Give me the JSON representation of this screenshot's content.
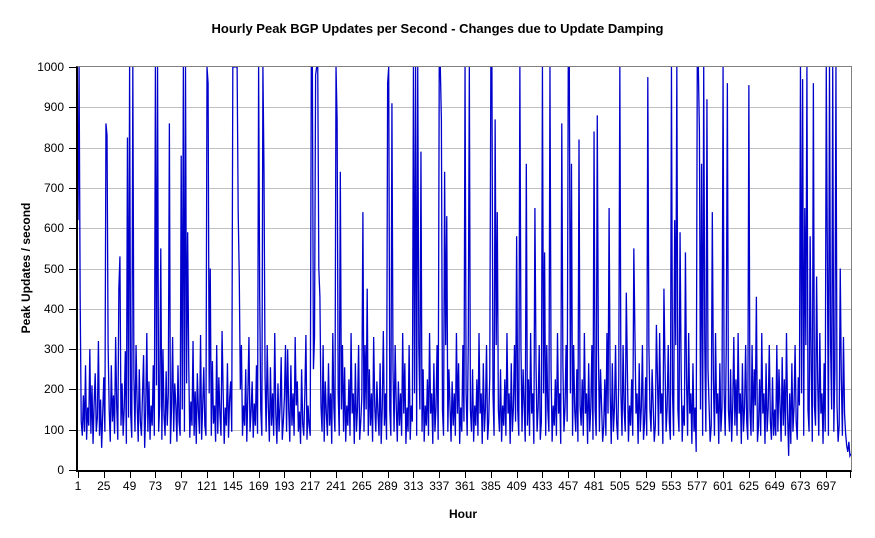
{
  "chart_data": {
    "type": "line",
    "title": "Hourly Peak BGP Updates per Second - Changes due to Update Damping",
    "xlabel": "Hour",
    "ylabel": "Peak Updates / second",
    "ylim": [
      0,
      1000
    ],
    "xlim": [
      1,
      720
    ],
    "y_ticks": [
      0,
      100,
      200,
      300,
      400,
      500,
      600,
      700,
      800,
      900,
      1000
    ],
    "x_tick_labels": [
      1,
      25,
      49,
      73,
      97,
      121,
      145,
      169,
      193,
      217,
      241,
      265,
      289,
      313,
      337,
      361,
      385,
      409,
      433,
      457,
      481,
      505,
      529,
      553,
      577,
      601,
      625,
      649,
      673,
      697
    ],
    "grid": "horizontal-only",
    "legend_position": "none",
    "clipped_at_top": true,
    "series": [
      {
        "name": "Hourly peak BGP updates per second",
        "x_start_hour": 1,
        "values": [
          620,
          1000,
          430,
          120,
          85,
          185,
          95,
          260,
          75,
          155,
          110,
          300,
          90,
          210,
          65,
          165,
          240,
          95,
          130,
          320,
          85,
          175,
          55,
          140,
          230,
          95,
          860,
          830,
          310,
          150,
          70,
          260,
          120,
          185,
          90,
          330,
          160,
          75,
          450,
          530,
          110,
          215,
          85,
          155,
          295,
          65,
          825,
          130,
          1000,
          140,
          80,
          1000,
          230,
          95,
          310,
          165,
          70,
          250,
          120,
          85,
          190,
          285,
          55,
          150,
          340,
          95,
          220,
          75,
          160,
          110,
          260,
          85,
          1000,
          210,
          1000,
          95,
          160,
          550,
          75,
          300,
          135,
          85,
          245,
          110,
          190,
          860,
          65,
          155,
          330,
          95,
          215,
          160,
          70,
          260,
          120,
          85,
          780,
          150,
          1000,
          95,
          1000,
          215,
          590,
          260,
          80,
          170,
          110,
          320,
          85,
          195,
          65,
          240,
          145,
          90,
          335,
          75,
          160,
          255,
          110,
          85,
          1000,
          960,
          190,
          500,
          85,
          270,
          115,
          160,
          70,
          310,
          90,
          230,
          140,
          85,
          345,
          195,
          65,
          155,
          110,
          265,
          80,
          175,
          220,
          95,
          1000,
          1000,
          1000,
          1000,
          1000,
          640,
          480,
          200,
          310,
          85,
          160,
          110,
          250,
          70,
          190,
          330,
          95,
          145,
          220,
          80,
          165,
          110,
          260,
          90,
          1000,
          430,
          150,
          85,
          1000,
          740,
          230,
          95,
          310,
          160,
          70,
          255,
          110,
          190,
          85,
          340,
          140,
          65,
          215,
          95,
          160,
          280,
          75,
          120,
          180,
          310,
          95,
          300,
          150,
          70,
          260,
          110,
          190,
          85,
          330,
          160,
          220,
          95,
          145,
          65,
          250,
          115,
          85,
          190,
          335,
          75,
          160,
          110,
          85,
          1000,
          1000,
          250,
          330,
          980,
          1000,
          1000,
          500,
          430,
          160,
          95,
          310,
          70,
          220,
          140,
          85,
          265,
          110,
          190,
          65,
          340,
          155,
          95,
          1000,
          870,
          190,
          85,
          740,
          150,
          310,
          95,
          255,
          70,
          160,
          110,
          225,
          85,
          340,
          140,
          190,
          65,
          265,
          95,
          155,
          310,
          75,
          120,
          180,
          640,
          95,
          310,
          150,
          450,
          85,
          250,
          110,
          190,
          70,
          330,
          160,
          95,
          220,
          140,
          85,
          265,
          65,
          155,
          345,
          110,
          190,
          75,
          960,
          1000,
          150,
          85,
          910,
          250,
          95,
          310,
          160,
          70,
          220,
          110,
          190,
          85,
          340,
          140,
          265,
          65,
          155,
          95,
          310,
          75,
          160,
          120,
          1000,
          190,
          1000,
          85,
          1000,
          310,
          150,
          790,
          95,
          250,
          70,
          160,
          110,
          225,
          85,
          340,
          140,
          190,
          65,
          265,
          95,
          155,
          310,
          75,
          1000,
          1000,
          870,
          150,
          85,
          740,
          310,
          630,
          95,
          250,
          160,
          70,
          220,
          110,
          190,
          85,
          340,
          140,
          265,
          65,
          155,
          95,
          310,
          120,
          1000,
          190,
          85,
          310,
          1000,
          150,
          95,
          250,
          70,
          160,
          110,
          225,
          85,
          340,
          140,
          190,
          65,
          265,
          95,
          155,
          310,
          75,
          120,
          230,
          1000,
          1000,
          190,
          85,
          870,
          310,
          640,
          150,
          95,
          250,
          70,
          160,
          110,
          225,
          85,
          340,
          140,
          190,
          65,
          265,
          95,
          155,
          310,
          120,
          580,
          150,
          85,
          1000,
          310,
          95,
          250,
          160,
          70,
          760,
          110,
          225,
          85,
          340,
          140,
          190,
          65,
          650,
          265,
          95,
          155,
          310,
          75,
          120,
          1000,
          190,
          540,
          85,
          310,
          150,
          95,
          1000,
          250,
          70,
          160,
          110,
          225,
          85,
          340,
          140,
          190,
          65,
          860,
          265,
          95,
          155,
          310,
          120,
          1000,
          1000,
          190,
          760,
          85,
          310,
          150,
          95,
          250,
          70,
          820,
          160,
          110,
          225,
          85,
          340,
          140,
          190,
          65,
          265,
          95,
          155,
          310,
          75,
          840,
          150,
          85,
          880,
          310,
          95,
          250,
          160,
          70,
          110,
          225,
          85,
          340,
          140,
          650,
          190,
          65,
          265,
          95,
          155,
          310,
          120,
          75,
          230,
          1000,
          190,
          85,
          310,
          150,
          95,
          440,
          250,
          70,
          160,
          110,
          225,
          85,
          550,
          340,
          140,
          190,
          65,
          265,
          95,
          155,
          310,
          75,
          120,
          230,
          85,
          975,
          310,
          150,
          95,
          250,
          160,
          70,
          110,
          360,
          225,
          85,
          340,
          140,
          190,
          65,
          450,
          265,
          95,
          155,
          310,
          120,
          75,
          1000,
          190,
          85,
          620,
          310,
          1000,
          150,
          95,
          590,
          250,
          70,
          160,
          110,
          540,
          225,
          85,
          340,
          140,
          190,
          65,
          265,
          95,
          155,
          45,
          1000,
          1000,
          840,
          150,
          760,
          85,
          1000,
          310,
          95,
          920,
          250,
          160,
          70,
          110,
          640,
          225,
          85,
          340,
          140,
          190,
          65,
          265,
          95,
          155,
          1000,
          190,
          85,
          310,
          960,
          150,
          95,
          250,
          70,
          160,
          330,
          110,
          225,
          85,
          340,
          140,
          190,
          65,
          265,
          95,
          155,
          310,
          120,
          75,
          955,
          150,
          85,
          310,
          95,
          250,
          160,
          430,
          70,
          110,
          225,
          85,
          340,
          140,
          190,
          65,
          265,
          95,
          155,
          310,
          120,
          75,
          230,
          85,
          150,
          85,
          310,
          95,
          250,
          160,
          70,
          280,
          110,
          225,
          85,
          340,
          140,
          35,
          190,
          65,
          265,
          95,
          155,
          310,
          120,
          75,
          230,
          160,
          1000,
          190,
          970,
          85,
          650,
          310,
          1000,
          150,
          95,
          580,
          250,
          70,
          960,
          160,
          110,
          480,
          225,
          85,
          340,
          140,
          190,
          65,
          265,
          95,
          1000,
          530,
          85,
          1000,
          310,
          150,
          1000,
          95,
          250,
          1000,
          160,
          70,
          110,
          500,
          225,
          85,
          330,
          140,
          90,
          60,
          45,
          70,
          35,
          40
        ]
      }
    ]
  },
  "colors": {
    "line": "#0000CC",
    "gridline": "#C0C0C0",
    "plot_border": "#808080",
    "axis": "#000000",
    "background": "#FFFFFF",
    "text": "#000000"
  }
}
